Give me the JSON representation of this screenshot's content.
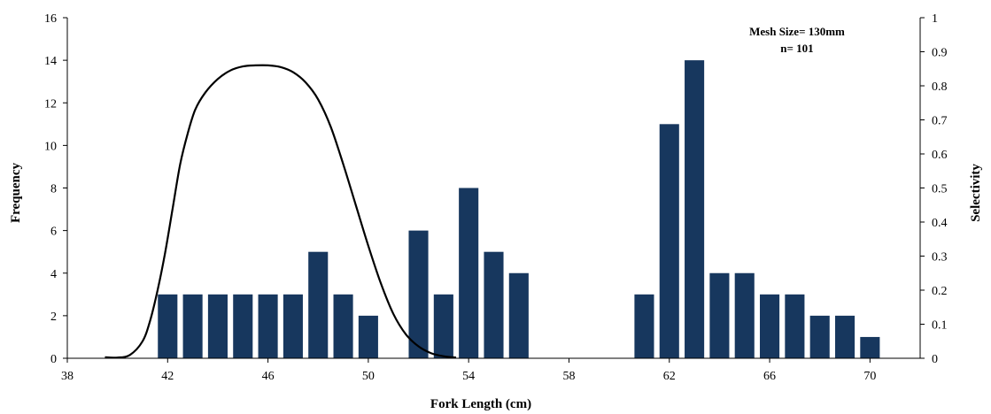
{
  "chart_data": {
    "type": "bar",
    "xlabel": "Fork Length (cm)",
    "ylabel": "Frequency",
    "y2label": "Selectivity",
    "annotation": [
      "Mesh Size= 130mm",
      "n= 101"
    ],
    "xlim": [
      38,
      72
    ],
    "ylim": [
      0,
      16
    ],
    "y2lim": [
      0,
      1
    ],
    "x_ticks": [
      38,
      42,
      46,
      50,
      54,
      58,
      62,
      66,
      70
    ],
    "y_ticks": [
      0,
      2,
      4,
      6,
      8,
      10,
      12,
      14,
      16
    ],
    "y2_ticks": [
      "0",
      "0.1",
      "0.2",
      "0.3",
      "0.4",
      "0.5",
      "0.6",
      "0.7",
      "0.8",
      "0.9",
      "1"
    ],
    "bar_color": "#17375e",
    "bars": [
      {
        "x": 42,
        "y": 3
      },
      {
        "x": 43,
        "y": 3
      },
      {
        "x": 44,
        "y": 3
      },
      {
        "x": 45,
        "y": 3
      },
      {
        "x": 46,
        "y": 3
      },
      {
        "x": 47,
        "y": 3
      },
      {
        "x": 48,
        "y": 5
      },
      {
        "x": 49,
        "y": 3
      },
      {
        "x": 50,
        "y": 2
      },
      {
        "x": 52,
        "y": 6
      },
      {
        "x": 53,
        "y": 3
      },
      {
        "x": 54,
        "y": 8
      },
      {
        "x": 55,
        "y": 5
      },
      {
        "x": 56,
        "y": 4
      },
      {
        "x": 61,
        "y": 3
      },
      {
        "x": 62,
        "y": 11
      },
      {
        "x": 63,
        "y": 14
      },
      {
        "x": 64,
        "y": 4
      },
      {
        "x": 65,
        "y": 4
      },
      {
        "x": 66,
        "y": 3
      },
      {
        "x": 67,
        "y": 3
      },
      {
        "x": 68,
        "y": 2
      },
      {
        "x": 69,
        "y": 2
      },
      {
        "x": 70,
        "y": 1
      }
    ],
    "selectivity_curve": {
      "color": "#000000",
      "points": [
        [
          39.5,
          0.003
        ],
        [
          40.0,
          0.002
        ],
        [
          40.5,
          0.01
        ],
        [
          41.0,
          0.05
        ],
        [
          41.3,
          0.11
        ],
        [
          41.6,
          0.2
        ],
        [
          41.9,
          0.31
        ],
        [
          42.2,
          0.44
        ],
        [
          42.5,
          0.57
        ],
        [
          42.8,
          0.66
        ],
        [
          43.1,
          0.73
        ],
        [
          43.5,
          0.78
        ],
        [
          44.0,
          0.82
        ],
        [
          44.5,
          0.845
        ],
        [
          45.0,
          0.857
        ],
        [
          45.5,
          0.86
        ],
        [
          46.0,
          0.86
        ],
        [
          46.5,
          0.855
        ],
        [
          47.0,
          0.84
        ],
        [
          47.5,
          0.81
        ],
        [
          48.0,
          0.76
        ],
        [
          48.5,
          0.68
        ],
        [
          49.0,
          0.57
        ],
        [
          49.5,
          0.45
        ],
        [
          50.0,
          0.33
        ],
        [
          50.5,
          0.22
        ],
        [
          51.0,
          0.13
        ],
        [
          51.5,
          0.07
        ],
        [
          52.0,
          0.035
        ],
        [
          52.5,
          0.015
        ],
        [
          53.0,
          0.006
        ],
        [
          53.5,
          0.002
        ]
      ]
    }
  }
}
